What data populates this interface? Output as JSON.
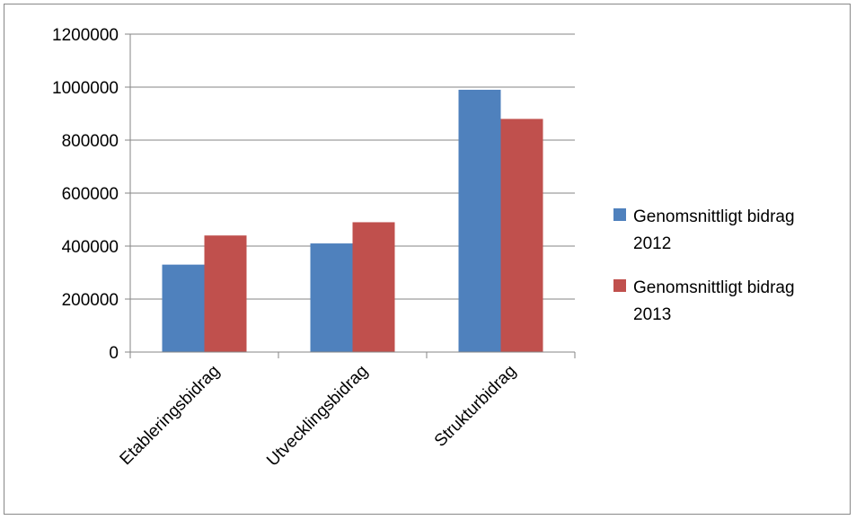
{
  "chart_data": {
    "type": "bar",
    "categories": [
      "Etableringsbidrag",
      "Utvecklingsbidrag",
      "Strukturbidrag"
    ],
    "series": [
      {
        "name": "Genomsnittligt bidrag 2012",
        "name_lines": [
          "Genomsnittligt bidrag",
          "2012"
        ],
        "color": "#4f81bd",
        "values": [
          330000,
          410000,
          990000
        ]
      },
      {
        "name": "Genomsnittligt bidrag 2013",
        "name_lines": [
          "Genomsnittligt bidrag",
          "2013"
        ],
        "color": "#c0504d",
        "values": [
          440000,
          490000,
          880000
        ]
      }
    ],
    "ylim": [
      0,
      1200000
    ],
    "yticks": [
      "0",
      "200000",
      "400000",
      "600000",
      "800000",
      "1000000",
      "1200000"
    ],
    "title": "",
    "xlabel": "",
    "ylabel": "",
    "grid": true,
    "legend_position": "right"
  }
}
